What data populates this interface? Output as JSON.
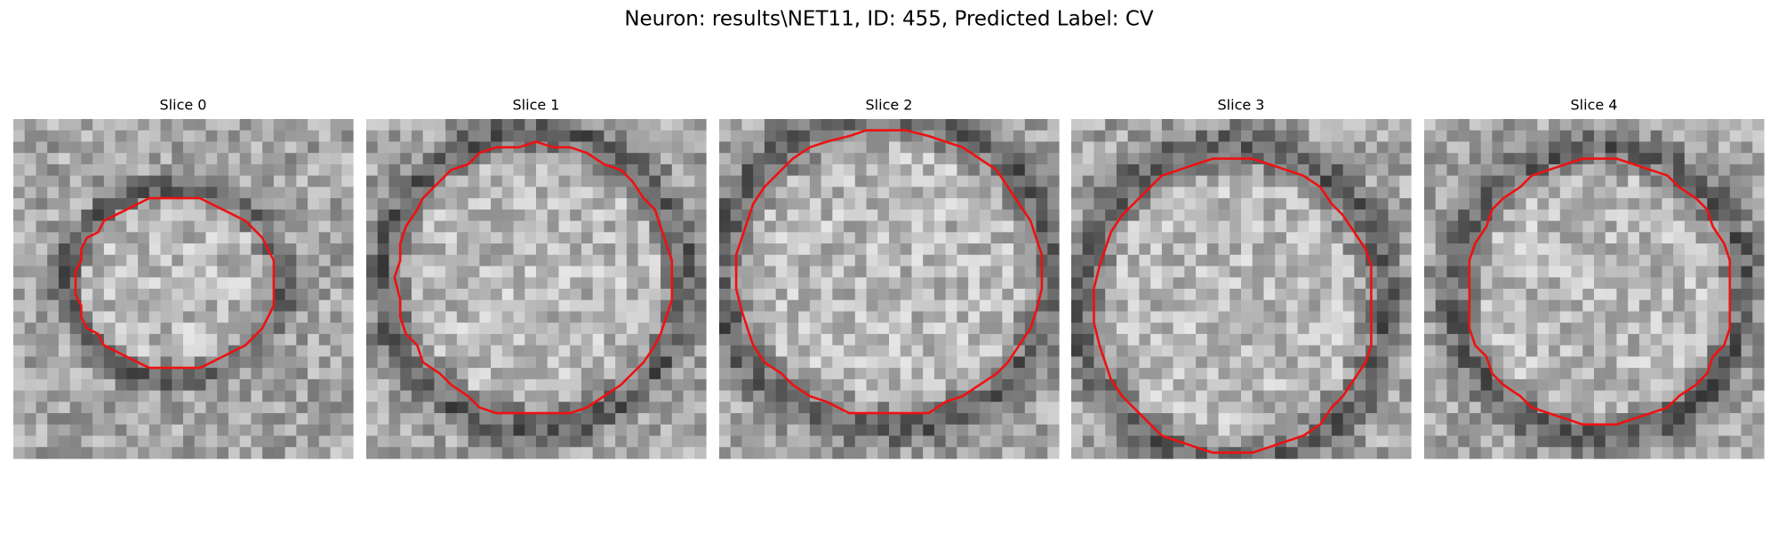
{
  "title": "Neuron: results\\NET11, ID: 455, Predicted Label: CV",
  "panels": [
    {
      "title": "Slice 0"
    },
    {
      "title": "Slice 1"
    },
    {
      "title": "Slice 2"
    },
    {
      "title": "Slice 3"
    },
    {
      "title": "Slice 4"
    }
  ]
}
